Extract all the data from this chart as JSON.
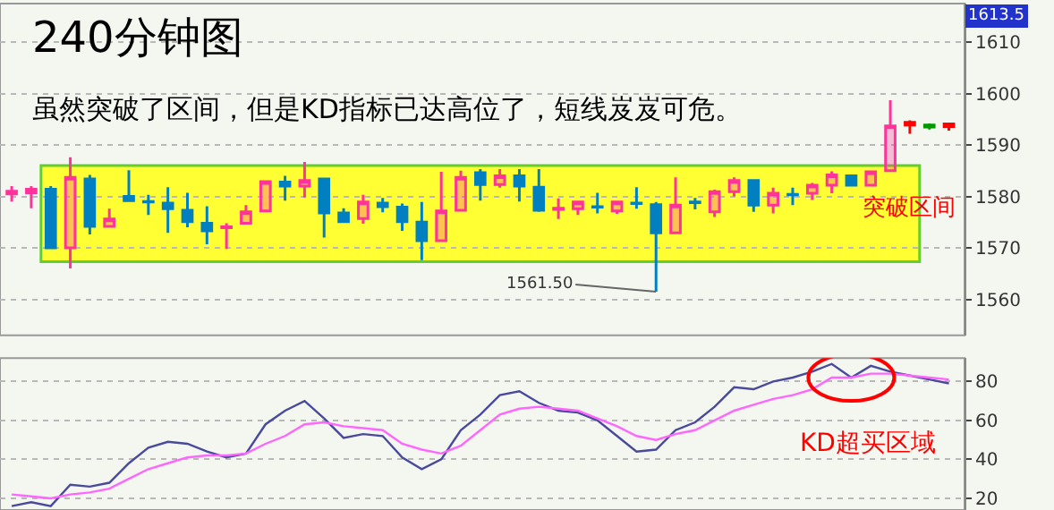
{
  "chart_data": [
    {
      "type": "candlestick",
      "title": "240分钟图",
      "subtitle": "虽然突破了区间，但是KD指标已达高位了，短线岌岌可危。",
      "categories": [
        null,
        null,
        null,
        null,
        null,
        null,
        null,
        null,
        null,
        null,
        null,
        null,
        null,
        null,
        null,
        null,
        null,
        null,
        null,
        null,
        null,
        null,
        null,
        null,
        null,
        null,
        null,
        null,
        null,
        null,
        null,
        null,
        null,
        null,
        null,
        null,
        null,
        null,
        null,
        null,
        null,
        null,
        null,
        null,
        null,
        null,
        null,
        null,
        null
      ],
      "ohlc": [
        [
          1580.5,
          1582,
          1579,
          1581
        ],
        [
          1580.7,
          1582,
          1577.7,
          1581.4
        ],
        [
          1581.4,
          1582,
          1570,
          1570
        ],
        [
          1570,
          1587.6,
          1566,
          1583.7
        ],
        [
          1583.4,
          1584.2,
          1572.6,
          1574.2
        ],
        [
          1574.2,
          1577.6,
          1574.2,
          1575.6
        ],
        [
          1580,
          1585.1,
          1578.9,
          1579.2
        ],
        [
          1579,
          1580.3,
          1576.4,
          1578.9
        ],
        [
          1578.7,
          1581.8,
          1572.9,
          1577.6
        ],
        [
          1577.3,
          1580.7,
          1574,
          1575.1
        ],
        [
          1574.8,
          1578.1,
          1570.7,
          1573.3
        ],
        [
          1573.9,
          1574.8,
          1569.8,
          1574.1
        ],
        [
          1574.8,
          1578.3,
          1574.8,
          1577
        ],
        [
          1577.2,
          1582.9,
          1577.2,
          1582.9
        ],
        [
          1582.8,
          1584,
          1579.2,
          1582
        ],
        [
          1582,
          1586.7,
          1579.8,
          1583.1
        ],
        [
          1583.4,
          1583.4,
          1572,
          1576.8
        ],
        [
          1576.8,
          1577.7,
          1575.1,
          1575.1
        ],
        [
          1575.7,
          1580.3,
          1574.7,
          1578.9
        ],
        [
          1578.7,
          1579.7,
          1576.9,
          1578
        ],
        [
          1577.9,
          1578.6,
          1573.3,
          1575.1
        ],
        [
          1575,
          1578.9,
          1567.6,
          1571.4
        ],
        [
          1571.4,
          1584.8,
          1571.4,
          1577.2
        ],
        [
          1577.3,
          1585,
          1577.3,
          1583.7
        ],
        [
          1584.6,
          1585.3,
          1579.2,
          1582.3
        ],
        [
          1582.3,
          1585.3,
          1581.7,
          1584
        ],
        [
          1584,
          1585.3,
          1579,
          1582
        ],
        [
          1581.8,
          1585.3,
          1577,
          1577.3
        ],
        [
          1577.5,
          1579.6,
          1575.6,
          1577.7
        ],
        [
          1577.6,
          1578.9,
          1576.4,
          1578.9
        ],
        [
          1578,
          1580.7,
          1576.7,
          1577.9
        ],
        [
          1577.2,
          1579,
          1576.6,
          1578.9
        ],
        [
          1578.7,
          1581.8,
          1577.6,
          1578.6
        ],
        [
          1578.4,
          1578.9,
          1561.5,
          1572.9
        ],
        [
          1572.9,
          1583.7,
          1572.9,
          1578.3
        ],
        [
          1578.9,
          1579.7,
          1577.5,
          1578.8
        ],
        [
          1577,
          1581.3,
          1576,
          1580.9
        ],
        [
          1580.9,
          1583.7,
          1580,
          1583.1
        ],
        [
          1583.1,
          1583.3,
          1577,
          1578.3
        ],
        [
          1578.3,
          1581.7,
          1576.7,
          1580.6
        ],
        [
          1580.4,
          1581.7,
          1578.3,
          1580.3
        ],
        [
          1580.6,
          1582.6,
          1579.3,
          1582.2
        ],
        [
          1582.2,
          1584.9,
          1580.6,
          1584.2
        ],
        [
          1584,
          1584,
          1582.2,
          1582.2
        ],
        [
          1582.2,
          1585,
          1582.2,
          1584.8
        ],
        [
          1585,
          1598.7,
          1585,
          1593.7
        ],
        [
          1593.9,
          1594.8,
          1592.2,
          1594.4
        ],
        [
          1593.9,
          1594.2,
          1593,
          1593.5
        ],
        [
          1593.6,
          1594.2,
          1592.8,
          1594.1
        ]
      ],
      "colors": [
        "#ff3399",
        "#ff3399",
        "#0080c0",
        "#ff3399",
        "#0080c0",
        "#ff3399",
        "#0080c0",
        "#0080c0",
        "#0080c0",
        "#0080c0",
        "#0080c0",
        "#ff3399",
        "#ff3399",
        "#ff3399",
        "#0080c0",
        "#ff3399",
        "#0080c0",
        "#0080c0",
        "#ff3399",
        "#0080c0",
        "#0080c0",
        "#0080c0",
        "#ff3399",
        "#ff3399",
        "#0080c0",
        "#ff3399",
        "#0080c0",
        "#0080c0",
        "#ff3399",
        "#ff3399",
        "#0080c0",
        "#ff3399",
        "#0080c0",
        "#0080c0",
        "#ff3399",
        "#0080c0",
        "#ff3399",
        "#ff3399",
        "#0080c0",
        "#ff3399",
        "#0080c0",
        "#ff3399",
        "#ff3399",
        "#0080c0",
        "#ff3399",
        "#ff3399",
        "#ff0000",
        "#009900",
        "#ff0000"
      ],
      "ylim": [
        1553,
        1617.5
      ],
      "yticks": [
        1560,
        1570,
        1580,
        1590,
        1600,
        1610
      ],
      "grid": "y",
      "tick_labels": "y",
      "bands": [
        {
          "axis": "y",
          "from": 1567.3,
          "to": 1586,
          "color": "#ffff33"
        }
      ],
      "annotations": [
        "1561.50",
        "突破区间",
        "1613.5"
      ]
    },
    {
      "type": "line",
      "categories": [
        null,
        null,
        null,
        null,
        null,
        null,
        null,
        null,
        null,
        null,
        null,
        null,
        null,
        null,
        null,
        null,
        null,
        null,
        null,
        null,
        null,
        null,
        null,
        null,
        null,
        null,
        null,
        null,
        null,
        null,
        null,
        null,
        null,
        null,
        null,
        null,
        null,
        null,
        null,
        null,
        null,
        null,
        null,
        null,
        null,
        null,
        null,
        null,
        null
      ],
      "series": [
        {
          "color": "#4a4a9c",
          "values": [
            16,
            18,
            16,
            27,
            26,
            28,
            38,
            46,
            49,
            48,
            44,
            41,
            43,
            58,
            65,
            70,
            61,
            51,
            53,
            52,
            41,
            35,
            40,
            55,
            63,
            73,
            75,
            69,
            65,
            64,
            60,
            52,
            44,
            45,
            55,
            59,
            67,
            77,
            76,
            80,
            82,
            85,
            89,
            82,
            88,
            85,
            83,
            81,
            79
          ]
        },
        {
          "color": "#ff66ff",
          "values": [
            22,
            21,
            20,
            22,
            23,
            25,
            30,
            35,
            38,
            41,
            42,
            42,
            43,
            48,
            52,
            58,
            59,
            57,
            56,
            55,
            48,
            45,
            43,
            47,
            55,
            63,
            66,
            67,
            66,
            65,
            61,
            57,
            52,
            50,
            53,
            55,
            60,
            65,
            68,
            71,
            73,
            76,
            82,
            82,
            84,
            84,
            83,
            82,
            81
          ]
        }
      ],
      "ylim": [
        14,
        92
      ],
      "yticks": [
        20,
        40,
        60,
        80
      ],
      "grid": "y",
      "tick_labels": "y",
      "annotations": [
        "KD超买区域"
      ]
    }
  ]
}
